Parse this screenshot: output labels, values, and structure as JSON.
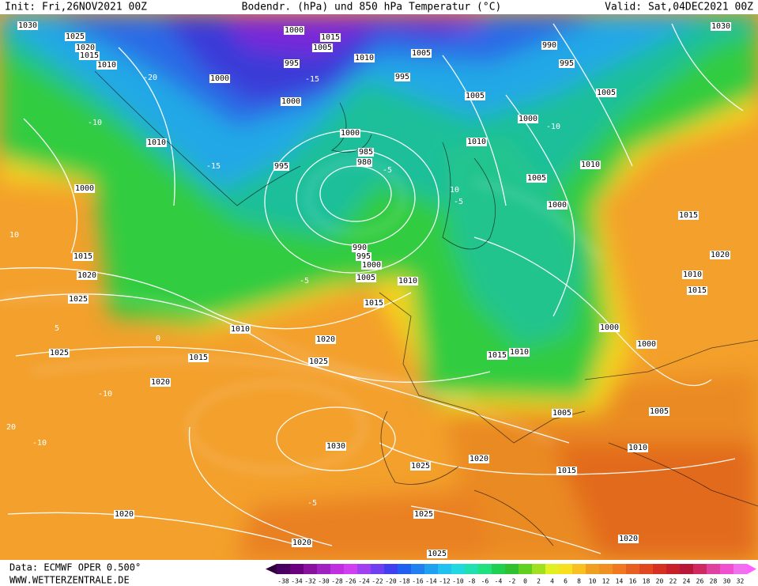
{
  "header": {
    "init": "Init: Fri,26NOV2021 00Z",
    "title": "Bodendr. (hPa) und 850 hPa Temperatur (°C)",
    "valid": "Valid: Sat,04DEC2021 00Z"
  },
  "footer": {
    "source": "Data: ECMWF OPER 0.500°",
    "website": "WWW.WETTERZENTRALE.DE"
  },
  "isobar_labels": [
    "1030",
    "1025",
    "1020",
    "1015",
    "1010",
    "1000",
    "1015",
    "1005",
    "1010",
    "995",
    "1000",
    "1005",
    "995",
    "990",
    "995",
    "1000",
    "1005",
    "1005",
    "1000",
    "1000",
    "1010",
    "1010",
    "985",
    "980",
    "995",
    "1010",
    "1005",
    "1000",
    "1000",
    "1015",
    "1015",
    "990",
    "995",
    "1000",
    "1005",
    "1010",
    "1020",
    "1020",
    "1010",
    "1015",
    "1025",
    "1015",
    "1010",
    "1000",
    "1020",
    "1000",
    "1025",
    "1015",
    "1015",
    "1010",
    "1025",
    "1020",
    "1005",
    "1005",
    "1030",
    "1010",
    "1020",
    "1025",
    "1015",
    "1020",
    "1025",
    "1020",
    "1020",
    "1025",
    "1030"
  ],
  "temperature_labels": [
    "-15",
    "-20",
    "-10",
    "-15",
    "-5",
    "10",
    "-5",
    "5",
    "0",
    "-10",
    "-5",
    "10",
    "20",
    "-10",
    "-5",
    "-10"
  ],
  "colorbar_labels": [
    "-38",
    "-34",
    "-32",
    "-30",
    "-28",
    "-26",
    "-24",
    "-22",
    "-20",
    "-18",
    "-16",
    "-14",
    "-12",
    "-10",
    "-8",
    "-6",
    "-4",
    "-2",
    "0",
    "2",
    "4",
    "6",
    "8",
    "10",
    "12",
    "14",
    "16",
    "18",
    "20",
    "22",
    "24",
    "26",
    "28",
    "30",
    "32"
  ]
}
